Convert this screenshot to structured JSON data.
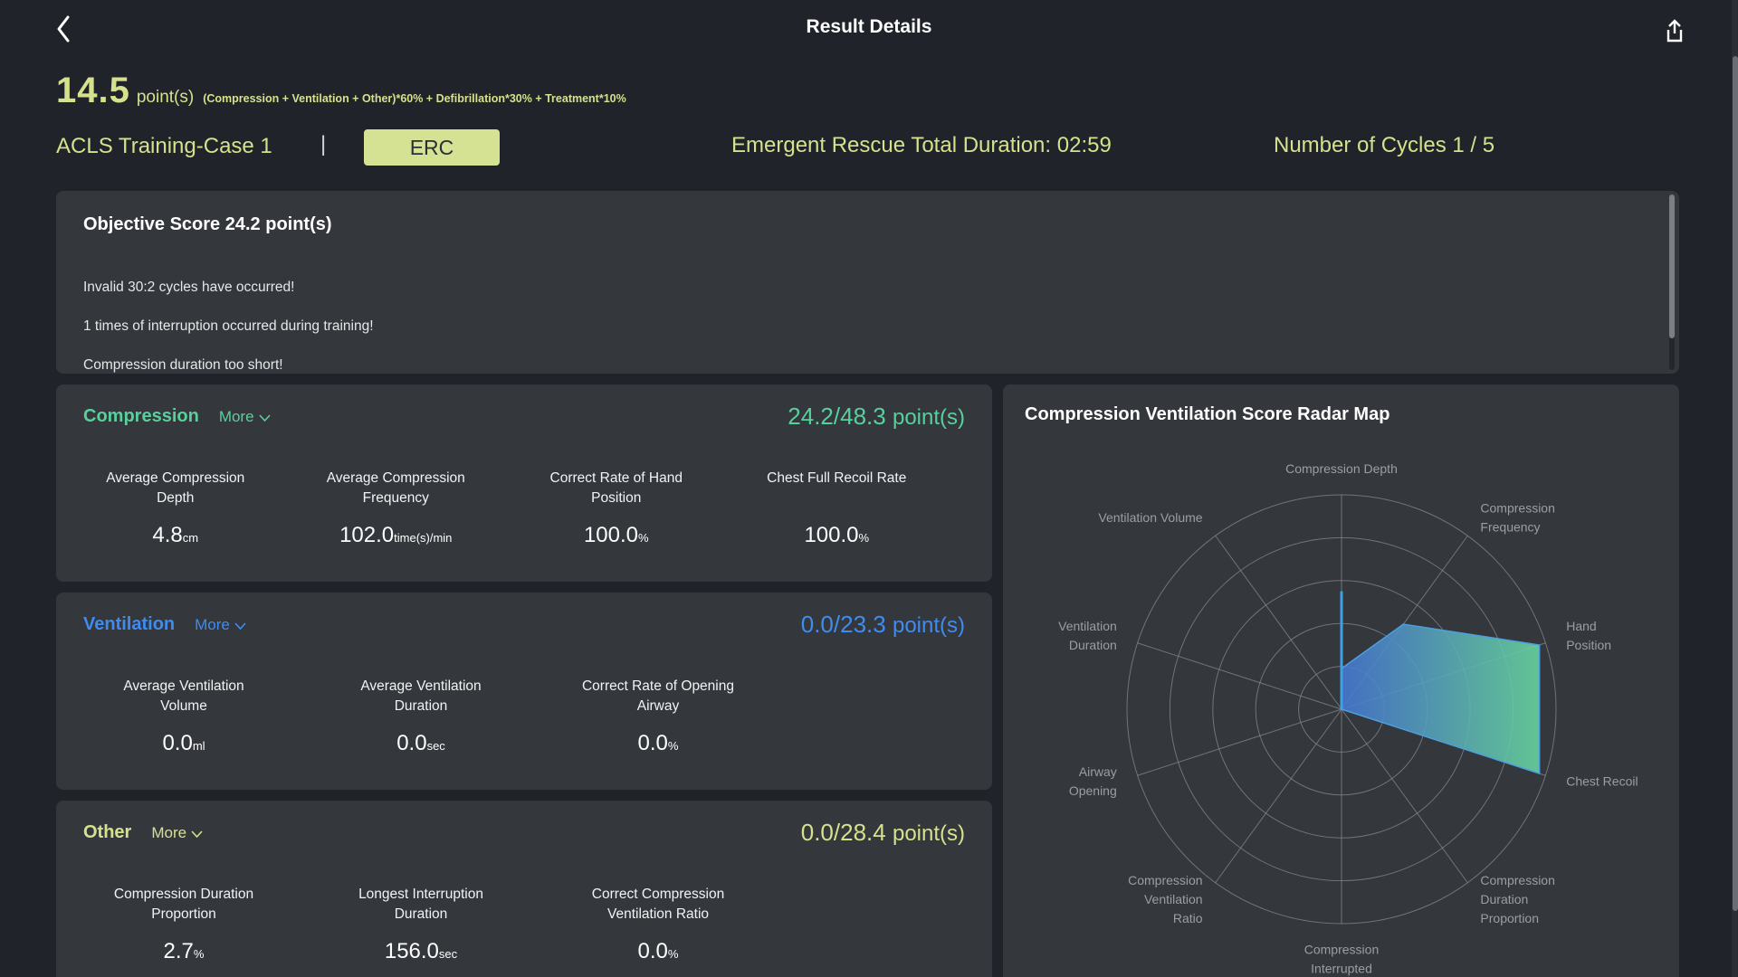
{
  "header": {
    "title": "Result Details"
  },
  "score_summary": {
    "score": "14.5",
    "unit": "point(s)",
    "formula": "(Compression + Ventilation + Other)*60% + Defibrillation*30% + Treatment*10%"
  },
  "session_info": {
    "case_name": "ACLS Training-Case 1",
    "separator": "|",
    "protocol_badge": "ERC",
    "duration_label": "Emergent Rescue Total Duration: 02:59",
    "cycles_label": "Number of Cycles 1 / 5"
  },
  "objective": {
    "title": "Objective Score 24.2 point(s)",
    "messages": [
      "Invalid 30:2 cycles have occurred!",
      "1 times of interruption occurred during training!",
      "Compression duration too short!"
    ]
  },
  "ui": {
    "slash": "/"
  },
  "sections": [
    {
      "title": "Compression",
      "more": "More",
      "score": "24.2",
      "max": "48.3",
      "suffix": "point(s)",
      "accent": "#58d09c",
      "metrics": [
        {
          "label": "Average Compression Depth",
          "value": "4.8",
          "unit": "cm"
        },
        {
          "label": "Average Compression Frequency",
          "value": "102.0",
          "unit": "time(s)/min"
        },
        {
          "label": "Correct Rate of Hand Position",
          "value": "100.0",
          "unit": "%"
        },
        {
          "label": "Chest Full Recoil Rate",
          "value": "100.0",
          "unit": "%"
        }
      ]
    },
    {
      "title": "Ventilation",
      "more": "More",
      "score": "0.0",
      "max": "23.3",
      "suffix": "point(s)",
      "accent": "#3f8cf0",
      "metrics": [
        {
          "label": "Average Ventilation Volume",
          "value": "0.0",
          "unit": "ml"
        },
        {
          "label": "Average Ventilation Duration",
          "value": "0.0",
          "unit": "sec"
        },
        {
          "label": "Correct Rate of Opening Airway",
          "value": "0.0",
          "unit": "%"
        }
      ]
    },
    {
      "title": "Other",
      "more": "More",
      "score": "0.0",
      "max": "28.4",
      "suffix": "point(s)",
      "accent": "#d5e18c",
      "metrics": [
        {
          "label": "Compression Duration Proportion",
          "value": "2.7",
          "unit": "%"
        },
        {
          "label": "Longest Interruption Duration",
          "value": "156.0",
          "unit": "sec"
        },
        {
          "label": "Correct Compression Ventilation Ratio",
          "value": "0.0",
          "unit": "%"
        }
      ]
    }
  ],
  "chart_data": {
    "type": "radar",
    "title": "Compression Ventilation Score Radar Map",
    "axes": [
      "Compression Depth",
      "Compression Frequency",
      "Hand Position",
      "Chest Recoil",
      "Compression Duration Proportion",
      "Compression Interrupted",
      "Compression Ventilation Ratio",
      "Airway Opening",
      "Ventilation Duration",
      "Ventilation Volume"
    ],
    "max": 100,
    "rings": 5,
    "grid_color": "#85888d",
    "label_color": "#9b9ea3",
    "series": [
      {
        "name": "score-area",
        "values": [
          19,
          49,
          97,
          97,
          0,
          0,
          0,
          0,
          0,
          0
        ],
        "fill_gradient": [
          "#4577d4",
          "#68d7a0"
        ],
        "line_color": "#4d9fe0"
      },
      {
        "name": "depth-spike",
        "values": [
          55,
          0,
          0,
          0,
          0,
          0,
          0,
          0,
          0,
          0
        ],
        "line_color": "#3fa0e6"
      }
    ]
  }
}
